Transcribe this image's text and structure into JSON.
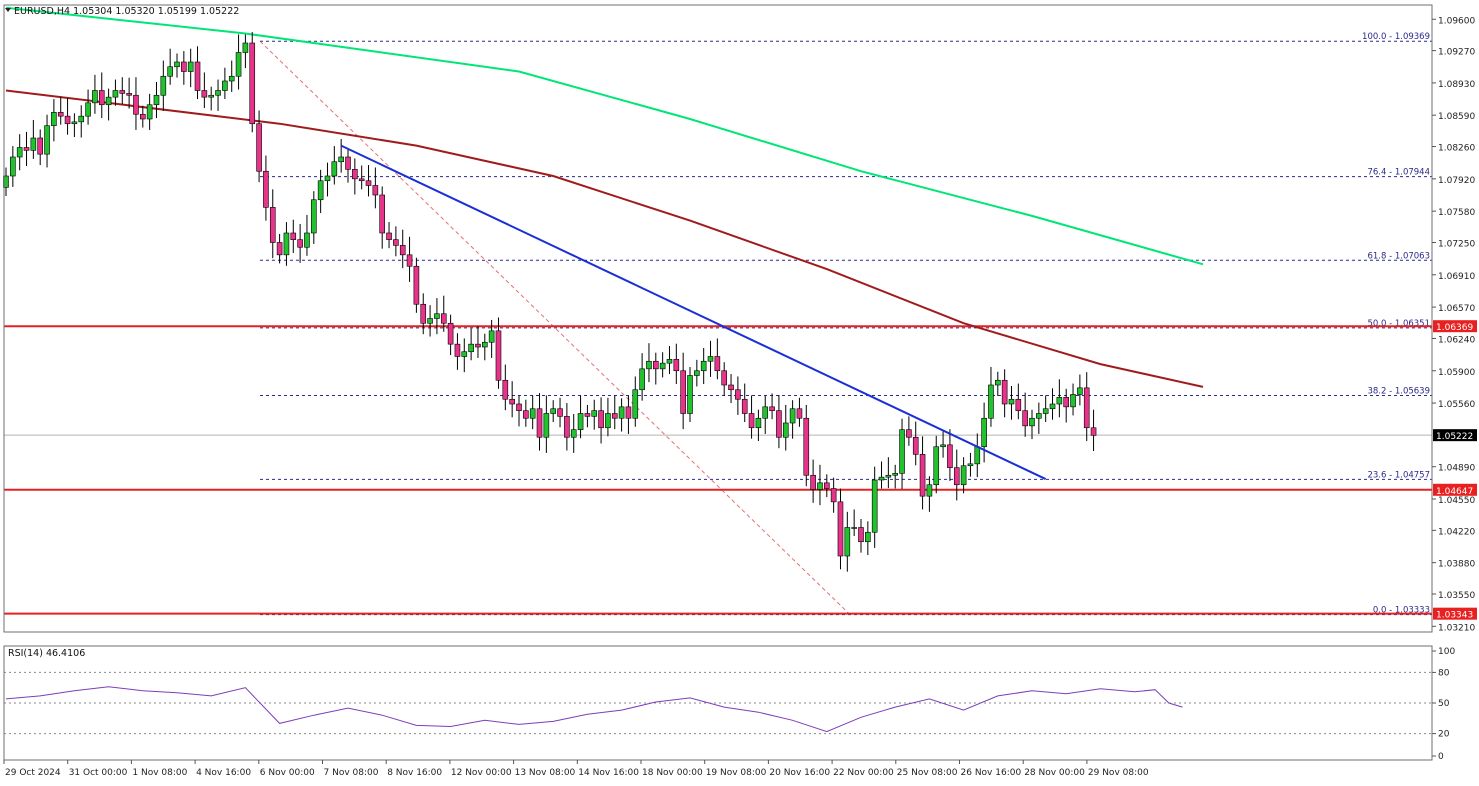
{
  "header": {
    "symbol_line": "EURUSD,H4  1.05304 1.05320 1.05199 1.05222",
    "rsi_label": "RSI(14) 46.4106"
  },
  "price_axis": {
    "ticks": [
      "1.09600",
      "1.09270",
      "1.08930",
      "1.08590",
      "1.08260",
      "1.07920",
      "1.07580",
      "1.07250",
      "1.06910",
      "1.06570",
      "1.06240",
      "1.05900",
      "1.05560",
      "1.04890",
      "1.04550",
      "1.04220",
      "1.03880",
      "1.03550",
      "1.03210"
    ],
    "tick_values": [
      1.096,
      1.0927,
      1.0893,
      1.0859,
      1.0826,
      1.0792,
      1.0758,
      1.0725,
      1.0691,
      1.0657,
      1.0624,
      1.059,
      1.0556,
      1.0489,
      1.0455,
      1.0422,
      1.0388,
      1.0355,
      1.0321
    ],
    "current_price": "1.05222",
    "current_value": 1.05222,
    "level_badges": [
      {
        "label": "1.06369",
        "value": 1.06369
      },
      {
        "label": "1.04647",
        "value": 1.04647
      },
      {
        "label": "1.03343",
        "value": 1.03343
      }
    ]
  },
  "rsi_axis": {
    "ticks": [
      "100",
      "80",
      "50",
      "20",
      "0"
    ],
    "tick_values": [
      100,
      80,
      50,
      20,
      0
    ],
    "levels": [
      80,
      50,
      20
    ]
  },
  "time_axis": {
    "labels": [
      "29 Oct 2024",
      "31 Oct 00:00",
      "1 Nov 08:00",
      "4 Nov 16:00",
      "6 Nov 00:00",
      "7 Nov 08:00",
      "8 Nov 16:00",
      "12 Nov 00:00",
      "13 Nov 08:00",
      "14 Nov 16:00",
      "18 Nov 00:00",
      "19 Nov 08:00",
      "20 Nov 16:00",
      "22 Nov 00:00",
      "25 Nov 08:00",
      "26 Nov 16:00",
      "28 Nov 00:00",
      "29 Nov 08:00"
    ]
  },
  "fib_levels": [
    {
      "label": "100.0 - 1.09369",
      "value": 1.09369
    },
    {
      "label": "76.4 - 1.07944",
      "value": 1.07944
    },
    {
      "label": "61.8 - 1.07063",
      "value": 1.07063
    },
    {
      "label": "50.0 - 1.06351",
      "value": 1.06351
    },
    {
      "label": "38.2 - 1.05639",
      "value": 1.05639
    },
    {
      "label": "23.6 - 1.04757",
      "value": 1.04757
    },
    {
      "label": "0.0 - 1.03333",
      "value": 1.03333
    }
  ],
  "colors": {
    "bull": "#22c22e",
    "bear": "#e8338a",
    "trendline": "#1a2fd6",
    "ma_slow": "#00e676",
    "ma_fast": "#a01c1c",
    "level": "#e82020",
    "fib": "#2a2a8a",
    "rsi": "#7a3fb8",
    "grid": "#8a8a8a"
  },
  "chart_data": {
    "type": "candlestick",
    "symbol": "EURUSD",
    "timeframe": "H4",
    "ylim": [
      1.0315,
      1.0975
    ],
    "horizontal_levels": [
      1.06369,
      1.04647,
      1.03343
    ],
    "fib_retracement": {
      "from": 1.09369,
      "to": 1.03333
    },
    "trendline": [
      {
        "bar": 49,
        "price": 1.0827
      },
      {
        "bar": 152,
        "price": 1.0476
      }
    ],
    "ma_slow_approx": [
      {
        "bar": 0,
        "price": 1.0972
      },
      {
        "bar": 35,
        "price": 1.0945
      },
      {
        "bar": 75,
        "price": 1.0905
      },
      {
        "bar": 100,
        "price": 1.0855
      },
      {
        "bar": 125,
        "price": 1.08
      },
      {
        "bar": 150,
        "price": 1.0753
      },
      {
        "bar": 175,
        "price": 1.0702
      }
    ],
    "ma_fast_approx": [
      {
        "bar": 0,
        "price": 1.0885
      },
      {
        "bar": 40,
        "price": 1.085
      },
      {
        "bar": 60,
        "price": 1.0827
      },
      {
        "bar": 80,
        "price": 1.0795
      },
      {
        "bar": 100,
        "price": 1.0748
      },
      {
        "bar": 120,
        "price": 1.0697
      },
      {
        "bar": 140,
        "price": 1.064
      },
      {
        "bar": 160,
        "price": 1.0597
      },
      {
        "bar": 175,
        "price": 1.0573
      }
    ],
    "closes": [
      1.0795,
      1.0815,
      1.0825,
      1.0822,
      1.0835,
      1.0818,
      1.0848,
      1.0862,
      1.0858,
      1.085,
      1.0852,
      1.0858,
      1.0872,
      1.0885,
      1.087,
      1.0878,
      1.0885,
      1.0882,
      1.088,
      1.086,
      1.0855,
      1.087,
      1.088,
      1.09,
      1.091,
      1.0915,
      1.0905,
      1.0915,
      1.0885,
      1.0878,
      1.088,
      1.0885,
      1.0895,
      1.09,
      1.0925,
      1.0935,
      1.085,
      1.08,
      1.0762,
      1.0725,
      1.0712,
      1.0735,
      1.0728,
      1.072,
      1.0735,
      1.077,
      1.079,
      1.0795,
      1.081,
      1.0815,
      1.0802,
      1.0792,
      1.079,
      1.0785,
      1.0775,
      1.0735,
      1.0728,
      1.0722,
      1.0712,
      1.07,
      1.066,
      1.064,
      1.0645,
      1.065,
      1.064,
      1.0618,
      1.0605,
      1.061,
      1.0618,
      1.0615,
      1.062,
      1.0632,
      1.058,
      1.056,
      1.0555,
      1.0548,
      1.054,
      1.055,
      1.052,
      1.0545,
      1.055,
      1.0542,
      1.052,
      1.0528,
      1.0545,
      1.0542,
      1.0548,
      1.053,
      1.0545,
      1.054,
      1.0552,
      1.054,
      1.057,
      1.0592,
      1.06,
      1.0592,
      1.0598,
      1.0602,
      1.059,
      1.0545,
      1.0585,
      1.059,
      1.06,
      1.0605,
      1.059,
      1.0575,
      1.057,
      1.056,
      1.0545,
      1.053,
      1.054,
      1.0552,
      1.0548,
      1.052,
      1.0535,
      1.055,
      1.054,
      1.048,
      1.0465,
      1.0472,
      1.0466,
      1.0452,
      1.0395,
      1.0425,
      1.0425,
      1.041,
      1.042,
      1.0475,
      1.0478,
      1.048,
      1.0482,
      1.0528,
      1.052,
      1.0502,
      1.0458,
      1.047,
      1.051,
      1.0512,
      1.0488,
      1.047,
      1.049,
      1.0492,
      1.051,
      1.054,
      1.0575,
      1.058,
      1.0555,
      1.056,
      1.0548,
      1.0532,
      1.054,
      1.0545,
      1.055,
      1.0555,
      1.0562,
      1.0552,
      1.0565,
      1.0572,
      1.053,
      1.0522
    ],
    "rsi_approx": [
      {
        "bar": 0,
        "value": 54
      },
      {
        "bar": 5,
        "value": 57
      },
      {
        "bar": 10,
        "value": 62
      },
      {
        "bar": 15,
        "value": 66
      },
      {
        "bar": 20,
        "value": 62
      },
      {
        "bar": 25,
        "value": 60
      },
      {
        "bar": 30,
        "value": 57
      },
      {
        "bar": 35,
        "value": 65
      },
      {
        "bar": 40,
        "value": 30
      },
      {
        "bar": 45,
        "value": 38
      },
      {
        "bar": 50,
        "value": 45
      },
      {
        "bar": 55,
        "value": 38
      },
      {
        "bar": 60,
        "value": 28
      },
      {
        "bar": 65,
        "value": 27
      },
      {
        "bar": 70,
        "value": 33
      },
      {
        "bar": 75,
        "value": 29
      },
      {
        "bar": 80,
        "value": 32
      },
      {
        "bar": 85,
        "value": 39
      },
      {
        "bar": 90,
        "value": 43
      },
      {
        "bar": 95,
        "value": 51
      },
      {
        "bar": 100,
        "value": 55
      },
      {
        "bar": 105,
        "value": 46
      },
      {
        "bar": 110,
        "value": 41
      },
      {
        "bar": 115,
        "value": 33
      },
      {
        "bar": 120,
        "value": 22
      },
      {
        "bar": 125,
        "value": 36
      },
      {
        "bar": 130,
        "value": 46
      },
      {
        "bar": 135,
        "value": 54
      },
      {
        "bar": 140,
        "value": 43
      },
      {
        "bar": 145,
        "value": 57
      },
      {
        "bar": 150,
        "value": 62
      },
      {
        "bar": 155,
        "value": 59
      },
      {
        "bar": 160,
        "value": 64
      },
      {
        "bar": 165,
        "value": 61
      },
      {
        "bar": 168,
        "value": 63
      },
      {
        "bar": 170,
        "value": 50
      },
      {
        "bar": 172,
        "value": 46
      }
    ]
  }
}
